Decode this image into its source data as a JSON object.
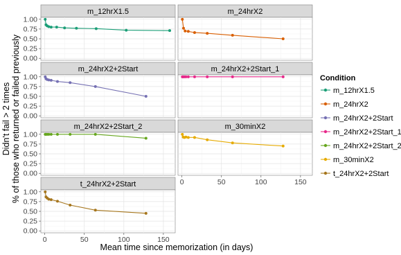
{
  "chart_data": {
    "type": "line",
    "layout": "facet-wrap",
    "ncol": 2,
    "xlabel": "Mean time since memorization (in days)",
    "ylabel_lines": [
      "Didn't fail > 2 times",
      "% of those who returned or failed previously"
    ],
    "xlim": [
      -5,
      165
    ],
    "ylim": [
      -0.05,
      1.05
    ],
    "xticks": [
      0,
      50,
      100,
      150
    ],
    "xtick_labels": [
      "0",
      "50",
      "100",
      "150"
    ],
    "yticks": [
      0,
      0.25,
      0.5,
      0.75,
      1.0
    ],
    "ytick_labels": [
      "0.00",
      "0.25",
      "0.50",
      "0.75",
      "1.00"
    ],
    "grid": true,
    "legend": {
      "title": "Condition",
      "position": "right"
    },
    "series": [
      {
        "name": "m_12hrX1.5",
        "color": "#1b9e77",
        "x": [
          0.5,
          1.5,
          3,
          5,
          8,
          15,
          25,
          40,
          65,
          103,
          158
        ],
        "y": [
          1.0,
          0.86,
          0.83,
          0.81,
          0.8,
          0.8,
          0.78,
          0.77,
          0.76,
          0.72,
          0.71
        ]
      },
      {
        "name": "m_24hrX2",
        "color": "#d95f02",
        "x": [
          0.5,
          2,
          4,
          8,
          16,
          32,
          64,
          128
        ],
        "y": [
          1.0,
          0.77,
          0.7,
          0.69,
          0.66,
          0.64,
          0.59,
          0.5
        ]
      },
      {
        "name": "m_24hrX2+2Start",
        "color": "#7570b3",
        "x": [
          0.5,
          1.5,
          3,
          5,
          8,
          16,
          32,
          64,
          128
        ],
        "y": [
          1.0,
          0.95,
          0.93,
          0.92,
          0.91,
          0.88,
          0.85,
          0.75,
          0.5
        ]
      },
      {
        "name": "m_24hrX2+2Start_1",
        "color": "#e7298a",
        "x": [
          0.5,
          1.5,
          3,
          5,
          8,
          16,
          32,
          64,
          128
        ],
        "y": [
          1.0,
          1.0,
          1.0,
          1.0,
          1.0,
          1.0,
          1.0,
          1.0,
          1.0
        ]
      },
      {
        "name": "m_24hrX2+2Start_2",
        "color": "#66a61e",
        "x": [
          0.5,
          1.5,
          3,
          5,
          8,
          16,
          32,
          64,
          128
        ],
        "y": [
          1.0,
          1.0,
          1.0,
          1.0,
          1.0,
          1.0,
          1.0,
          1.0,
          0.9
        ]
      },
      {
        "name": "m_30minX2",
        "color": "#e6ab02",
        "x": [
          0.5,
          1.5,
          3,
          5,
          8,
          16,
          32,
          64,
          128
        ],
        "y": [
          1.0,
          0.93,
          0.92,
          0.93,
          0.92,
          0.92,
          0.86,
          0.78,
          0.7
        ]
      },
      {
        "name": "t_24hrX2+2Start",
        "color": "#a6761d",
        "x": [
          0.5,
          1.5,
          3,
          5,
          8,
          16,
          32,
          64,
          128
        ],
        "y": [
          1.0,
          0.87,
          0.84,
          0.81,
          0.8,
          0.76,
          0.66,
          0.53,
          0.45
        ]
      }
    ]
  }
}
